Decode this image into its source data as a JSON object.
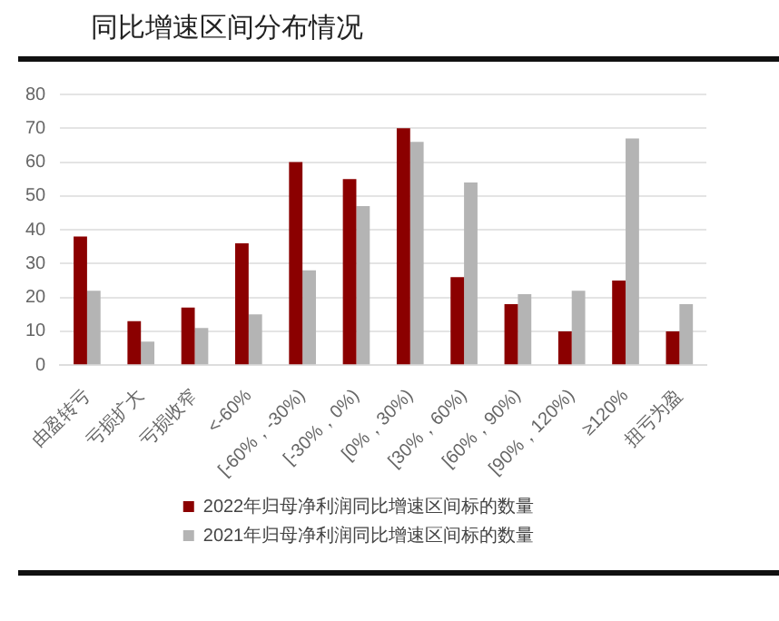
{
  "chart_data": {
    "type": "bar",
    "title": "同比增速区间分布情况",
    "categories": [
      "由盈转亏",
      "亏损扩大",
      "亏损收窄",
      "<-60%",
      "[-60%，-30%)",
      "[-30%，0%)",
      "[0%，30%)",
      "[30%，60%)",
      "[60%，90%)",
      "[90%，120%)",
      "≥120%",
      "扭亏为盈"
    ],
    "series": [
      {
        "name": "2022年归母净利润同比增速区间标的数量",
        "color": "#8b0000",
        "values": [
          38,
          13,
          17,
          36,
          60,
          55,
          70,
          26,
          18,
          10,
          25,
          10
        ]
      },
      {
        "name": "2021年归母净利润同比增速区间标的数量",
        "color": "#b4b4b4",
        "values": [
          22,
          7,
          11,
          15,
          28,
          47,
          66,
          54,
          21,
          22,
          67,
          18
        ]
      }
    ],
    "ylim": [
      0,
      80
    ],
    "yticks": [
      0,
      10,
      20,
      30,
      40,
      50,
      60,
      70,
      80
    ],
    "grid": "y",
    "legend": "bottom"
  }
}
